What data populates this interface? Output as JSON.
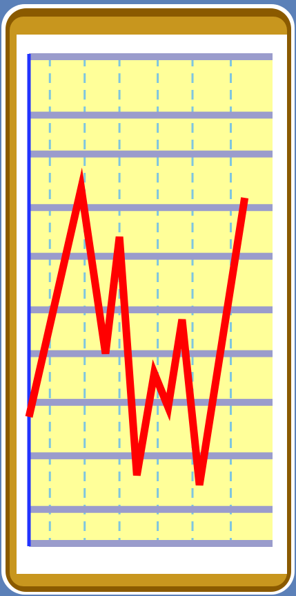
{
  "chart_data": {
    "type": "line",
    "x": [
      0,
      1.5,
      2.2,
      2.6,
      3.1,
      3.6,
      4.0,
      4.4,
      4.9,
      6.2
    ],
    "series": [
      {
        "color": "#ff0000",
        "values": [
          2.6,
          7.3,
          3.9,
          6.3,
          1.4,
          3.5,
          2.8,
          4.6,
          1.2,
          7.1
        ]
      }
    ],
    "xlim": [
      0,
      7
    ],
    "ylim": [
      0,
      10
    ],
    "xticks": [
      0.6,
      1.6,
      2.6,
      3.7,
      4.7,
      5.8
    ],
    "yticks": [
      0,
      0.7,
      1.8,
      2.9,
      3.9,
      4.8,
      5.9,
      6.9,
      8.0,
      8.8,
      10
    ],
    "grid": true,
    "grid_color": "#9a9ccc",
    "background_color": "#ffff99"
  }
}
